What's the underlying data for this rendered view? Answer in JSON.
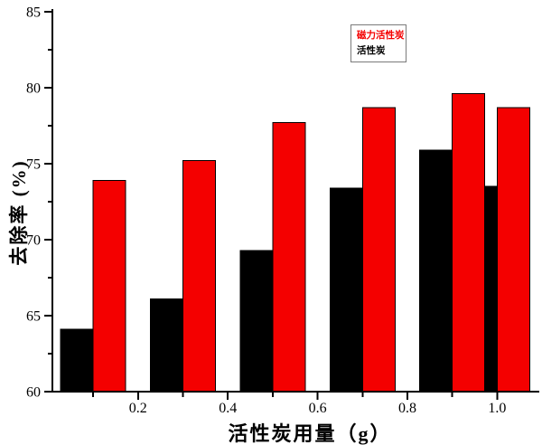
{
  "chart_data": {
    "type": "bar",
    "categories": [
      0.1,
      0.3,
      0.5,
      0.7,
      0.9,
      1.0
    ],
    "series": [
      {
        "name": "磁力活性炭",
        "color": "#f40000",
        "values": [
          73.9,
          75.2,
          77.7,
          78.7,
          79.6,
          78.7
        ]
      },
      {
        "name": "活性炭",
        "color": "#000000",
        "values": [
          64.1,
          66.1,
          69.3,
          73.4,
          75.9,
          73.5
        ]
      }
    ],
    "title": "",
    "x_axis": {
      "title": "活性炭用量（g）",
      "ticks_major": [
        0.2,
        0.4,
        0.6,
        0.8,
        1.0
      ],
      "tick_labels": [
        "0.2",
        "0.4",
        "0.6",
        "0.8",
        "1.0"
      ],
      "ticks_minor": [
        0.1,
        0.3,
        0.5,
        0.7,
        0.9
      ],
      "range": [
        0.0,
        1.09
      ]
    },
    "y_axis": {
      "title": "去除率 (%)",
      "ticks_major": [
        60,
        65,
        70,
        75,
        80,
        85
      ],
      "tick_labels": [
        "60",
        "65",
        "70",
        "75",
        "80",
        "85"
      ],
      "ticks_minor": [
        62.5,
        67.5,
        72.5,
        77.5,
        82.5
      ],
      "range": [
        60,
        85
      ]
    },
    "grid": false,
    "legend_position": "top-right-of-center",
    "legend_items": [
      {
        "label": "磁力活性炭",
        "color": "#f40000"
      },
      {
        "label": "活性炭",
        "color": "#000000"
      }
    ],
    "axis_color": "#000000",
    "background_color": "#ffffff"
  }
}
